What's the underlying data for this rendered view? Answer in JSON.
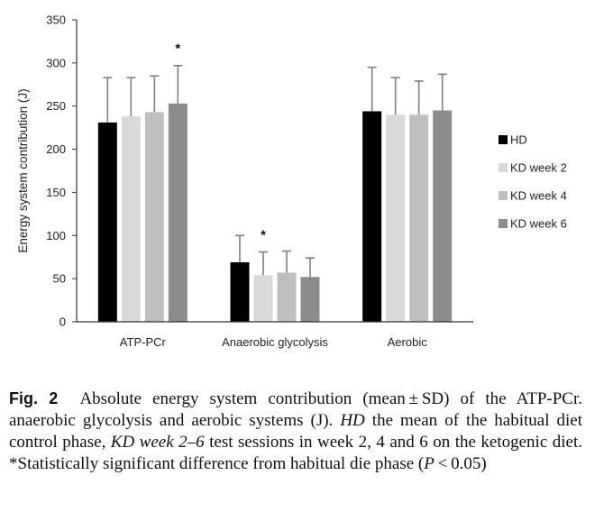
{
  "chart_data": {
    "type": "bar",
    "categories": [
      "ATP-PCr",
      "Anaerobic glycolysis",
      "Aerobic"
    ],
    "ylabel": "Energy system contribution (J)",
    "xlabel": "",
    "ylim": [
      0,
      350
    ],
    "yticks": [
      0,
      50,
      100,
      150,
      200,
      250,
      300,
      350
    ],
    "grid": false,
    "legend_position": "right",
    "error_bars": "SD (upper)",
    "series": [
      {
        "name": "HD",
        "color": "#000000",
        "values": [
          231,
          69,
          244
        ],
        "sd": [
          52,
          31,
          51
        ]
      },
      {
        "name": "KD week 2",
        "color": "#d9d9d9",
        "values": [
          238,
          54,
          240
        ],
        "sd": [
          45,
          27,
          43
        ]
      },
      {
        "name": "KD week 4",
        "color": "#bfbfbf",
        "values": [
          243,
          57,
          240
        ],
        "sd": [
          42,
          25,
          39
        ]
      },
      {
        "name": "KD week 6",
        "color": "#8c8c8c",
        "values": [
          253,
          52,
          245
        ],
        "sd": [
          44,
          22,
          42
        ]
      }
    ],
    "annotations": [
      {
        "text": "*",
        "category": "ATP-PCr",
        "series": "KD week 6"
      },
      {
        "text": "*",
        "category": "Anaerobic glycolysis",
        "series": "KD week 2"
      }
    ],
    "error_bar_color": "#7f7f7f",
    "axis_color": "#333333"
  },
  "caption": {
    "label": "Fig. 2",
    "text": "Absolute energy system contribution (mean ± SD) of the ATP-PCr. anaerobic glycolysis and aerobic systems (J). HD the mean of the habitual diet control phase, KD week 2–6 test sessions in week 2, 4 and 6 on the ketogenic diet. *Statistically significant difference from habitual die phase (P < 0.05)"
  }
}
